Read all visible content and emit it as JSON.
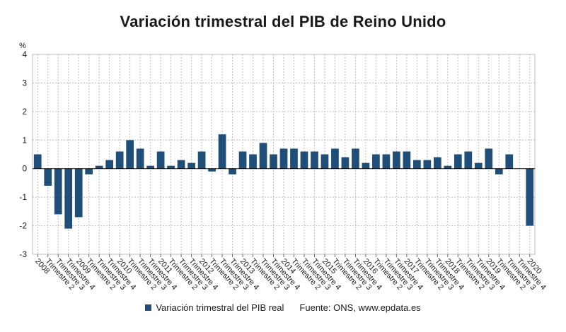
{
  "page": {
    "title": "Variación trimestral del PIB de Reino Unido",
    "source": "Fuente: ONS, www.epdata.es"
  },
  "colors": {
    "bar": "#1f4e79",
    "grid": "#bdbdbd",
    "axis": "#000000"
  },
  "chart_data": {
    "type": "bar",
    "title": "Variación trimestral del PIB de Reino Unido",
    "ylabel": "%",
    "xlabel": "",
    "ylim": [
      -3,
      4
    ],
    "yticks": [
      -3,
      -2,
      -1,
      0,
      1,
      2,
      3,
      4
    ],
    "grid": true,
    "legend_position": "bottom",
    "categories": [
      "2008",
      "Trimestre 2",
      "Trimestre 3",
      "Trimestre 4",
      "2009",
      "Trimestre 2",
      "Trimestre 3",
      "Trimestre 4",
      "2010",
      "Trimestre 2",
      "Trimestre 3",
      "Trimestre 4",
      "2011",
      "Trimestre 2",
      "Trimestre 3",
      "Trimestre 4",
      "2012",
      "Trimestre 2",
      "Trimestre 3",
      "Trimestre 4",
      "2013",
      "Trimestre 2",
      "Trimestre 3",
      "Trimestre 4",
      "2014",
      "Trimestre 2",
      "Trimestre 3",
      "Trimestre 4",
      "2015",
      "Trimestre 2",
      "Trimestre 3",
      "Trimestre 4",
      "2016",
      "Trimestre 2",
      "Trimestre 3",
      "Trimestre 4",
      "2017",
      "Trimestre 2",
      "Trimestre 3",
      "Trimestre 4",
      "2018",
      "Trimestre 2",
      "Trimestre 3",
      "Trimestre 4",
      "2019",
      "Trimestre 2",
      "Trimestre 3",
      "Trimestre 4",
      "2020"
    ],
    "series": [
      {
        "name": "Variación trimestral del PIB real",
        "values": [
          0.5,
          -0.6,
          -1.6,
          -2.1,
          -1.7,
          -0.2,
          0.1,
          0.3,
          0.6,
          1.0,
          0.7,
          0.1,
          0.6,
          0.1,
          0.3,
          0.2,
          0.6,
          -0.1,
          1.2,
          -0.2,
          0.6,
          0.5,
          0.9,
          0.5,
          0.7,
          0.7,
          0.6,
          0.6,
          0.5,
          0.7,
          0.4,
          0.7,
          0.2,
          0.5,
          0.5,
          0.6,
          0.6,
          0.3,
          0.3,
          0.4,
          0.1,
          0.5,
          0.6,
          0.2,
          0.7,
          -0.2,
          0.5,
          0.0,
          -2.0
        ]
      }
    ]
  }
}
